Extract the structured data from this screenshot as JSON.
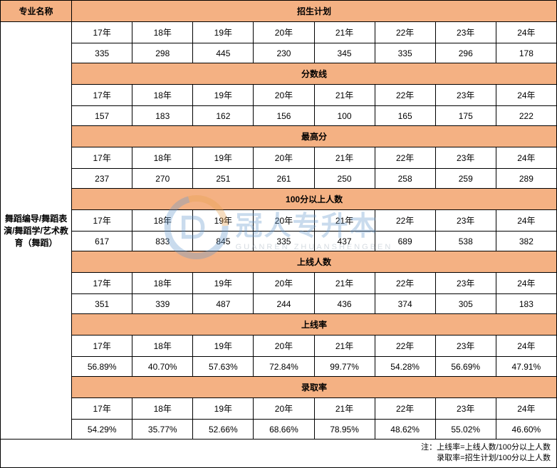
{
  "headers": {
    "major_name": "专业名称",
    "major_value": "舞蹈编导/舞蹈表演/舞蹈学/艺术教育（舞蹈）"
  },
  "years": [
    "17年",
    "18年",
    "19年",
    "20年",
    "21年",
    "22年",
    "23年",
    "24年"
  ],
  "sections": [
    {
      "title": "招生计划",
      "values": [
        "335",
        "298",
        "445",
        "230",
        "345",
        "335",
        "296",
        "178"
      ]
    },
    {
      "title": "分数线",
      "values": [
        "157",
        "183",
        "162",
        "156",
        "100",
        "165",
        "175",
        "222"
      ]
    },
    {
      "title": "最高分",
      "values": [
        "237",
        "270",
        "251",
        "261",
        "250",
        "258",
        "259",
        "289"
      ]
    },
    {
      "title": "100分以上人数",
      "values": [
        "617",
        "833",
        "845",
        "335",
        "437",
        "689",
        "538",
        "382"
      ]
    },
    {
      "title": "上线人数",
      "values": [
        "351",
        "339",
        "487",
        "244",
        "436",
        "374",
        "305",
        "183"
      ]
    },
    {
      "title": "上线率",
      "values": [
        "56.89%",
        "40.70%",
        "57.63%",
        "72.84%",
        "99.77%",
        "54.28%",
        "56.69%",
        "47.91%"
      ]
    },
    {
      "title": "录取率",
      "values": [
        "54.29%",
        "35.77%",
        "52.66%",
        "68.66%",
        "78.95%",
        "48.62%",
        "55.02%",
        "46.60%"
      ]
    }
  ],
  "footer": {
    "line1": "注：上线率=上线人数/100分以上人数",
    "line2": "录取率=招生计划/100分以上人数"
  },
  "watermark": {
    "main": "冠人专升本",
    "sub": "GUANREN ZHUANSHENGBEN"
  },
  "colors": {
    "header_bg": "#f4b183",
    "border": "#000000",
    "watermark_blue": "#6699cc",
    "watermark_orange": "#e8a04d"
  }
}
